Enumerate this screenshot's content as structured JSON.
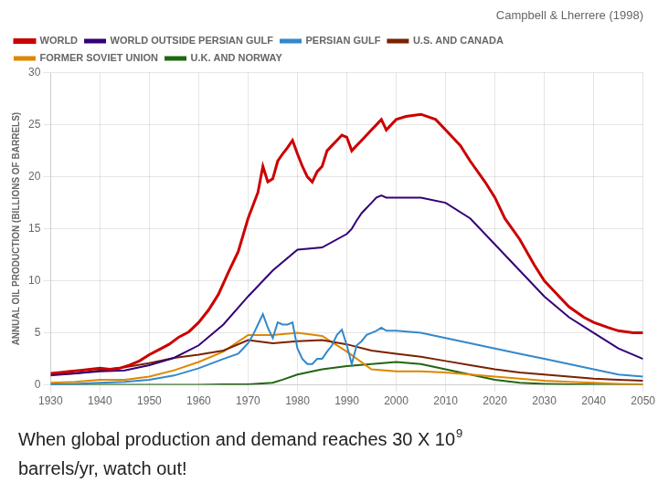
{
  "chart_data": {
    "type": "line",
    "title": "Campbell & Lherrere (1998)",
    "ylabel": "ANNUAL OIL PRODUCTION (BILLIONS OF BARRELS)",
    "xlim": [
      1930,
      2050
    ],
    "ylim": [
      0,
      30
    ],
    "xticks": [
      1930,
      1940,
      1950,
      1960,
      1970,
      1980,
      1990,
      2000,
      2010,
      2020,
      2030,
      2040,
      2050
    ],
    "yticks": [
      0,
      5,
      10,
      15,
      20,
      25,
      30
    ],
    "grid": true,
    "legend": "upper left",
    "annotations": [
      {
        "text": "When global production and demand reaches 30 X 10",
        "superscript": "9"
      },
      {
        "text": "barrels/yr, watch out!"
      }
    ],
    "series": [
      {
        "name": "WORLD",
        "color": "#cc0000",
        "x": [
          1930,
          1932,
          1934,
          1936,
          1938,
          1940,
          1942,
          1944,
          1946,
          1948,
          1950,
          1952,
          1954,
          1956,
          1958,
          1960,
          1962,
          1964,
          1966,
          1968,
          1970,
          1972,
          1973,
          1974,
          1975,
          1976,
          1977,
          1978,
          1979,
          1980,
          1981,
          1982,
          1983,
          1984,
          1985,
          1986,
          1987,
          1988,
          1989,
          1990,
          1991,
          1992,
          1993,
          1994,
          1995,
          1996,
          1997,
          1998,
          1998,
          2000,
          2002,
          2005,
          2008,
          2010,
          2013,
          2015,
          2018,
          2020,
          2022,
          2025,
          2028,
          2030,
          2033,
          2035,
          2038,
          2040,
          2043,
          2045,
          2048,
          2050
        ],
        "values": [
          1.1,
          1.2,
          1.3,
          1.4,
          1.5,
          1.6,
          1.5,
          1.6,
          1.9,
          2.3,
          2.9,
          3.4,
          3.9,
          4.6,
          5.1,
          6.0,
          7.2,
          8.7,
          10.8,
          12.8,
          16.0,
          18.5,
          21.0,
          19.5,
          19.8,
          21.5,
          22.2,
          22.8,
          23.5,
          22.2,
          21.0,
          20.0,
          19.5,
          20.5,
          21.0,
          22.5,
          23.0,
          23.5,
          24.0,
          23.8,
          22.5,
          23.0,
          23.5,
          24.0,
          24.5,
          25.0,
          25.5,
          24.5,
          24.5,
          25.5,
          25.8,
          26.0,
          25.5,
          24.5,
          23.0,
          21.5,
          19.5,
          18.0,
          16.0,
          14.0,
          11.5,
          10.0,
          8.5,
          7.5,
          6.5,
          6.0,
          5.5,
          5.2,
          5.0,
          5.0
        ]
      },
      {
        "name": "WORLD OUTSIDE PERSIAN GULF",
        "color": "#330077",
        "x": [
          1930,
          1935,
          1940,
          1945,
          1950,
          1955,
          1960,
          1965,
          1970,
          1975,
          1980,
          1985,
          1990,
          1991,
          1992,
          1993,
          1994,
          1995,
          1996,
          1997,
          1998,
          2000,
          2005,
          2010,
          2015,
          2020,
          2025,
          2030,
          2035,
          2040,
          2045,
          2050
        ],
        "values": [
          1.0,
          1.1,
          1.3,
          1.4,
          1.9,
          2.6,
          3.8,
          5.8,
          8.5,
          11.0,
          13.0,
          13.2,
          14.5,
          15.0,
          15.8,
          16.5,
          17.0,
          17.5,
          18.0,
          18.2,
          18.0,
          18.0,
          18.0,
          17.5,
          16.0,
          13.5,
          11.0,
          8.5,
          6.5,
          5.0,
          3.5,
          2.5
        ]
      },
      {
        "name": "PERSIAN GULF",
        "color": "#3388cc",
        "x": [
          1930,
          1935,
          1940,
          1945,
          1950,
          1955,
          1960,
          1965,
          1968,
          1969,
          1970,
          1971,
          1972,
          1973,
          1974,
          1975,
          1976,
          1977,
          1978,
          1979,
          1980,
          1981,
          1982,
          1983,
          1984,
          1985,
          1986,
          1987,
          1988,
          1989,
          1990,
          1991,
          1992,
          1993,
          1994,
          1995,
          1996,
          1997,
          1998,
          2000,
          2005,
          2010,
          2015,
          2020,
          2025,
          2030,
          2035,
          2040,
          2045,
          2050
        ],
        "values": [
          0.05,
          0.1,
          0.2,
          0.3,
          0.5,
          0.9,
          1.6,
          2.5,
          3.0,
          3.5,
          4.0,
          4.8,
          5.8,
          6.8,
          5.5,
          4.5,
          6.0,
          5.8,
          5.8,
          6.0,
          3.5,
          2.5,
          2.0,
          2.0,
          2.5,
          2.5,
          3.2,
          3.8,
          4.8,
          5.3,
          3.8,
          2.0,
          3.8,
          4.2,
          4.8,
          5.0,
          5.2,
          5.5,
          5.2,
          5.2,
          5.0,
          4.5,
          4.0,
          3.5,
          3.0,
          2.5,
          2.0,
          1.5,
          1.0,
          0.8
        ]
      },
      {
        "name": "U.S. AND CANADA",
        "color": "#7a2200",
        "x": [
          1930,
          1935,
          1940,
          1945,
          1950,
          1955,
          1960,
          1965,
          1970,
          1975,
          1980,
          1985,
          1990,
          1995,
          2000,
          2005,
          2010,
          2015,
          2020,
          2025,
          2030,
          2035,
          2040,
          2045,
          2050
        ],
        "values": [
          0.9,
          1.1,
          1.4,
          1.7,
          2.1,
          2.6,
          2.9,
          3.3,
          4.3,
          4.0,
          4.2,
          4.3,
          3.9,
          3.3,
          3.0,
          2.7,
          2.3,
          1.9,
          1.5,
          1.2,
          1.0,
          0.8,
          0.6,
          0.5,
          0.4
        ]
      },
      {
        "name": "FORMER SOVIET UNION",
        "color": "#dd8800",
        "x": [
          1930,
          1935,
          1940,
          1945,
          1950,
          1955,
          1960,
          1965,
          1970,
          1975,
          1980,
          1985,
          1990,
          1995,
          2000,
          2005,
          2010,
          2015,
          2020,
          2025,
          2030,
          2035,
          2040,
          2045,
          2050
        ],
        "values": [
          0.2,
          0.3,
          0.5,
          0.5,
          0.8,
          1.4,
          2.2,
          3.2,
          4.8,
          4.8,
          5.0,
          4.7,
          3.2,
          1.5,
          1.3,
          1.3,
          1.2,
          1.0,
          0.8,
          0.6,
          0.4,
          0.3,
          0.2,
          0.1,
          0.05
        ]
      },
      {
        "name": "U.K. AND NORWAY",
        "color": "#226611",
        "x": [
          1930,
          1935,
          1940,
          1945,
          1950,
          1955,
          1960,
          1965,
          1970,
          1975,
          1977,
          1980,
          1985,
          1990,
          1995,
          2000,
          2005,
          2010,
          2015,
          2020,
          2025,
          2030,
          2035,
          2040,
          2045,
          2050
        ],
        "values": [
          0.0,
          0.0,
          0.0,
          0.0,
          0.0,
          0.0,
          0.0,
          0.05,
          0.05,
          0.2,
          0.5,
          1.0,
          1.5,
          1.8,
          2.0,
          2.2,
          2.0,
          1.5,
          1.0,
          0.5,
          0.2,
          0.1,
          0.05,
          0.02,
          0.01,
          0.0
        ]
      }
    ]
  }
}
